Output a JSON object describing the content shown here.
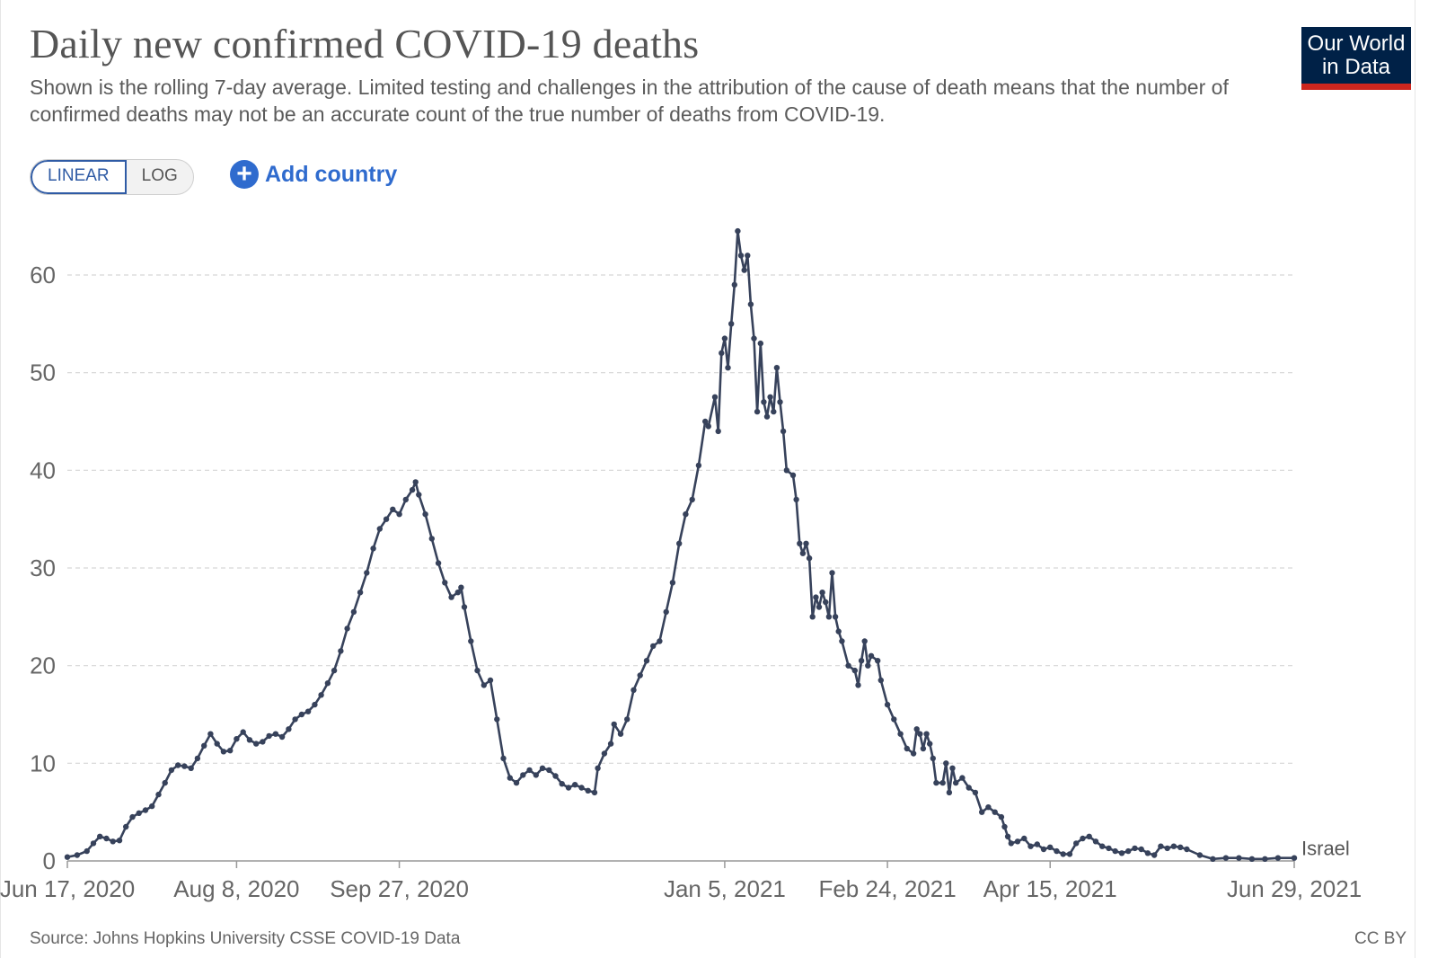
{
  "header": {
    "title": "Daily new confirmed COVID-19 deaths",
    "subtitle": "Shown is the rolling 7-day average. Limited testing and challenges in the attribution of the cause of death means that the number of confirmed deaths may not be an accurate count of the true number of deaths from COVID-19.",
    "logo_line1": "Our World",
    "logo_line2": "in Data"
  },
  "controls": {
    "linear_label": "LINEAR",
    "log_label": "LOG",
    "add_country_label": "Add country",
    "add_country_icon": "plus-circle-icon"
  },
  "footer": {
    "source": "Source: Johns Hopkins University CSSE COVID-19 Data",
    "license": "CC BY"
  },
  "colors": {
    "line": "#37425b",
    "grid": "#d6d6d6",
    "accent": "#2f6bce",
    "logo_bg": "#002147",
    "logo_bar": "#ce261e"
  },
  "chart_data": {
    "type": "line",
    "title": "Daily new confirmed COVID-19 deaths",
    "xlabel": "",
    "ylabel": "",
    "ylim": [
      0,
      65
    ],
    "yticks": [
      0,
      10,
      20,
      30,
      40,
      50,
      60
    ],
    "x_start_label": "Jun 17, 2020",
    "xlim_days": [
      0,
      377
    ],
    "xticks": [
      {
        "day": 0,
        "label": "Jun 17, 2020"
      },
      {
        "day": 52,
        "label": "Aug 8, 2020"
      },
      {
        "day": 102,
        "label": "Sep 27, 2020"
      },
      {
        "day": 202,
        "label": "Jan 5, 2021"
      },
      {
        "day": 252,
        "label": "Feb 24, 2021"
      },
      {
        "day": 302,
        "label": "Apr 15, 2021"
      },
      {
        "day": 377,
        "label": "Jun 29, 2021"
      }
    ],
    "grid": true,
    "legend": "end-of-line",
    "series": [
      {
        "name": "Israel",
        "points": [
          [
            0,
            0.4
          ],
          [
            3,
            0.6
          ],
          [
            6,
            1.0
          ],
          [
            8,
            1.8
          ],
          [
            10,
            2.5
          ],
          [
            12,
            2.3
          ],
          [
            14,
            2.0
          ],
          [
            16,
            2.1
          ],
          [
            18,
            3.5
          ],
          [
            20,
            4.5
          ],
          [
            22,
            4.9
          ],
          [
            24,
            5.2
          ],
          [
            26,
            5.6
          ],
          [
            28,
            6.8
          ],
          [
            30,
            8.0
          ],
          [
            32,
            9.3
          ],
          [
            34,
            9.8
          ],
          [
            36,
            9.7
          ],
          [
            38,
            9.5
          ],
          [
            40,
            10.5
          ],
          [
            42,
            11.8
          ],
          [
            44,
            13.0
          ],
          [
            46,
            12.0
          ],
          [
            48,
            11.2
          ],
          [
            50,
            11.3
          ],
          [
            52,
            12.5
          ],
          [
            54,
            13.2
          ],
          [
            56,
            12.4
          ],
          [
            58,
            12.0
          ],
          [
            60,
            12.2
          ],
          [
            62,
            12.8
          ],
          [
            64,
            13.0
          ],
          [
            66,
            12.7
          ],
          [
            68,
            13.5
          ],
          [
            70,
            14.5
          ],
          [
            72,
            15.0
          ],
          [
            74,
            15.3
          ],
          [
            76,
            16.0
          ],
          [
            78,
            17.0
          ],
          [
            80,
            18.2
          ],
          [
            82,
            19.5
          ],
          [
            84,
            21.5
          ],
          [
            86,
            23.8
          ],
          [
            88,
            25.5
          ],
          [
            90,
            27.5
          ],
          [
            92,
            29.5
          ],
          [
            94,
            32.0
          ],
          [
            96,
            34.0
          ],
          [
            98,
            35.0
          ],
          [
            100,
            36.0
          ],
          [
            102,
            35.5
          ],
          [
            104,
            37.0
          ],
          [
            106,
            38.0
          ],
          [
            107,
            38.8
          ],
          [
            108,
            37.5
          ],
          [
            110,
            35.5
          ],
          [
            112,
            33.0
          ],
          [
            114,
            30.5
          ],
          [
            116,
            28.5
          ],
          [
            118,
            27.0
          ],
          [
            120,
            27.5
          ],
          [
            121,
            28.0
          ],
          [
            122,
            26.0
          ],
          [
            124,
            22.5
          ],
          [
            126,
            19.5
          ],
          [
            128,
            18.0
          ],
          [
            130,
            18.5
          ],
          [
            132,
            14.5
          ],
          [
            134,
            10.5
          ],
          [
            136,
            8.5
          ],
          [
            138,
            8.0
          ],
          [
            140,
            8.8
          ],
          [
            142,
            9.3
          ],
          [
            144,
            8.8
          ],
          [
            146,
            9.5
          ],
          [
            148,
            9.3
          ],
          [
            150,
            8.7
          ],
          [
            152,
            7.9
          ],
          [
            154,
            7.5
          ],
          [
            156,
            7.8
          ],
          [
            158,
            7.5
          ],
          [
            160,
            7.2
          ],
          [
            162,
            7.0
          ],
          [
            163,
            9.5
          ],
          [
            165,
            11.0
          ],
          [
            167,
            12.0
          ],
          [
            168,
            14.0
          ],
          [
            170,
            13.0
          ],
          [
            172,
            14.5
          ],
          [
            174,
            17.5
          ],
          [
            176,
            19.0
          ],
          [
            178,
            20.5
          ],
          [
            180,
            22.0
          ],
          [
            182,
            22.5
          ],
          [
            184,
            25.5
          ],
          [
            186,
            28.5
          ],
          [
            188,
            32.5
          ],
          [
            190,
            35.5
          ],
          [
            192,
            37.0
          ],
          [
            194,
            40.5
          ],
          [
            196,
            45.0
          ],
          [
            197,
            44.5
          ],
          [
            199,
            47.5
          ],
          [
            200,
            44.0
          ],
          [
            201,
            52.0
          ],
          [
            202,
            53.5
          ],
          [
            203,
            50.5
          ],
          [
            204,
            55.0
          ],
          [
            205,
            59.0
          ],
          [
            206,
            64.5
          ],
          [
            207,
            62.0
          ],
          [
            208,
            60.5
          ],
          [
            209,
            62.0
          ],
          [
            210,
            57.0
          ],
          [
            211,
            53.5
          ],
          [
            212,
            46.0
          ],
          [
            213,
            53.0
          ],
          [
            214,
            47.0
          ],
          [
            215,
            45.5
          ],
          [
            216,
            47.5
          ],
          [
            217,
            46.0
          ],
          [
            218,
            50.5
          ],
          [
            219,
            47.0
          ],
          [
            220,
            44.0
          ],
          [
            221,
            40.0
          ],
          [
            223,
            39.5
          ],
          [
            224,
            37.0
          ],
          [
            225,
            32.5
          ],
          [
            226,
            31.5
          ],
          [
            227,
            32.5
          ],
          [
            228,
            31.0
          ],
          [
            229,
            25.0
          ],
          [
            230,
            27.0
          ],
          [
            231,
            26.0
          ],
          [
            232,
            27.5
          ],
          [
            233,
            26.5
          ],
          [
            234,
            25.0
          ],
          [
            235,
            29.5
          ],
          [
            236,
            25.0
          ],
          [
            237,
            23.5
          ],
          [
            238,
            22.5
          ],
          [
            240,
            20.0
          ],
          [
            242,
            19.5
          ],
          [
            243,
            18.0
          ],
          [
            244,
            20.5
          ],
          [
            245,
            22.5
          ],
          [
            246,
            20.0
          ],
          [
            247,
            21.0
          ],
          [
            249,
            20.5
          ],
          [
            250,
            18.5
          ],
          [
            252,
            16.0
          ],
          [
            254,
            14.5
          ],
          [
            256,
            13.0
          ],
          [
            258,
            11.5
          ],
          [
            260,
            11.0
          ],
          [
            261,
            13.5
          ],
          [
            262,
            13.0
          ],
          [
            263,
            11.5
          ],
          [
            264,
            13.0
          ],
          [
            265,
            12.0
          ],
          [
            266,
            10.5
          ],
          [
            267,
            8.0
          ],
          [
            269,
            8.0
          ],
          [
            270,
            10.0
          ],
          [
            271,
            7.0
          ],
          [
            272,
            9.5
          ],
          [
            273,
            8.0
          ],
          [
            275,
            8.5
          ],
          [
            277,
            7.5
          ],
          [
            279,
            7.0
          ],
          [
            281,
            5.0
          ],
          [
            283,
            5.5
          ],
          [
            285,
            5.0
          ],
          [
            287,
            4.5
          ],
          [
            288,
            3.5
          ],
          [
            289,
            2.5
          ],
          [
            290,
            1.8
          ],
          [
            292,
            2.0
          ],
          [
            294,
            2.3
          ],
          [
            296,
            1.5
          ],
          [
            298,
            1.7
          ],
          [
            300,
            1.2
          ],
          [
            302,
            1.4
          ],
          [
            304,
            1.0
          ],
          [
            306,
            0.7
          ],
          [
            308,
            0.7
          ],
          [
            310,
            1.8
          ],
          [
            312,
            2.3
          ],
          [
            314,
            2.5
          ],
          [
            316,
            2.0
          ],
          [
            318,
            1.5
          ],
          [
            320,
            1.3
          ],
          [
            322,
            1.0
          ],
          [
            324,
            0.8
          ],
          [
            326,
            1.0
          ],
          [
            328,
            1.3
          ],
          [
            330,
            1.2
          ],
          [
            332,
            0.8
          ],
          [
            334,
            0.6
          ],
          [
            336,
            1.5
          ],
          [
            338,
            1.3
          ],
          [
            340,
            1.5
          ],
          [
            342,
            1.4
          ],
          [
            344,
            1.2
          ],
          [
            348,
            0.6
          ],
          [
            352,
            0.2
          ],
          [
            356,
            0.3
          ],
          [
            360,
            0.3
          ],
          [
            364,
            0.2
          ],
          [
            368,
            0.2
          ],
          [
            372,
            0.3
          ],
          [
            377,
            0.3
          ]
        ]
      }
    ]
  }
}
